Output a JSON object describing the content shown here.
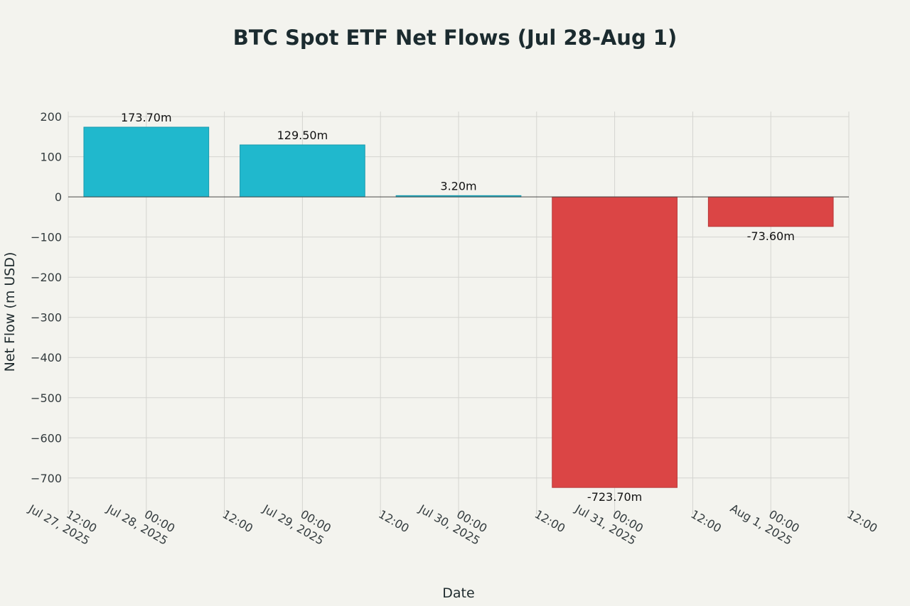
{
  "chart_data": {
    "type": "bar",
    "title": "BTC Spot ETF Net Flows (Jul 28-Aug 1)",
    "xlabel": "Date",
    "ylabel": "Net Flow (m USD)",
    "categories": [
      "2025-07-28",
      "2025-07-29",
      "2025-07-30",
      "2025-07-31",
      "2025-08-01"
    ],
    "values": [
      173.7,
      129.5,
      3.2,
      -723.7,
      -73.6
    ],
    "data_labels": [
      "173.70m",
      "129.50m",
      "3.20m",
      "-723.70m",
      "-73.60m"
    ],
    "ylim": [
      -780,
      225
    ],
    "yticks": [
      200,
      100,
      0,
      -100,
      -200,
      -300,
      -400,
      -500,
      -600,
      -700
    ],
    "ytick_labels": [
      "200",
      "100",
      "0",
      "−100",
      "−200",
      "−300",
      "−400",
      "−500",
      "−600",
      "−700"
    ],
    "xlim_days": [
      -0.5,
      4.5
    ],
    "xticks_days": [
      -0.5,
      0,
      0.5,
      1,
      1.5,
      2,
      2.5,
      3,
      3.5,
      4,
      4.5
    ],
    "xtick_labels": [
      [
        "12:00",
        "Jul 27, 2025"
      ],
      [
        "00:00",
        "Jul 28, 2025"
      ],
      [
        "12:00"
      ],
      [
        "00:00",
        "Jul 29, 2025"
      ],
      [
        "12:00"
      ],
      [
        "00:00",
        "Jul 30, 2025"
      ],
      [
        "12:00"
      ],
      [
        "00:00",
        "Jul 31, 2025"
      ],
      [
        "12:00"
      ],
      [
        "00:00",
        "Aug 1, 2025"
      ],
      [
        "12:00"
      ]
    ],
    "bar_width_days": 0.8,
    "colors": {
      "positive": "#20b8cd",
      "positive_edge": "#1a9aae",
      "negative": "#db4545",
      "negative_edge": "#b83737"
    },
    "grid": true,
    "legend": "none"
  }
}
